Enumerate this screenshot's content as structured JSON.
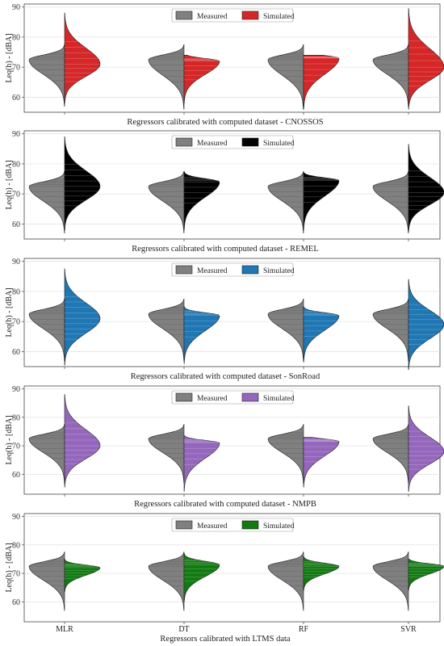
{
  "chart_data": [
    {
      "type": "violin",
      "title": "Regressors calibrated with computed dataset - CNOSSOS",
      "ylabel": "Leq(h) - [dBA]",
      "ylim": [
        55,
        91
      ],
      "yticks": [
        60,
        70,
        80,
        90
      ],
      "categories": [
        "MLR",
        "DT",
        "RF",
        "SVR"
      ],
      "legend": {
        "placement": "top-center",
        "entries": [
          "Measured",
          "Simulated"
        ]
      },
      "grid": true,
      "series": [
        {
          "name": "Measured",
          "color": "#808080",
          "side": "left",
          "min": [
            57,
            56,
            56,
            57
          ],
          "max": [
            77.5,
            77.5,
            77.5,
            77.5
          ],
          "peak": [
            72.5,
            72.5,
            72.5,
            72.5
          ]
        },
        {
          "name": "Simulated",
          "color": "#d62728",
          "side": "right",
          "min": [
            58,
            58,
            56,
            56
          ],
          "max": [
            88,
            74,
            74,
            89.5
          ],
          "peak": [
            71,
            72,
            73,
            70
          ]
        }
      ]
    },
    {
      "type": "violin",
      "title": "Regressors calibrated with computed dataset - REMEL",
      "ylabel": "Leq(h) - [dBA]",
      "ylim": [
        55,
        91
      ],
      "yticks": [
        60,
        70,
        80,
        90
      ],
      "categories": [
        "MLR",
        "DT",
        "RF",
        "SVR"
      ],
      "legend": {
        "placement": "top-center",
        "entries": [
          "Measured",
          "Simulated"
        ]
      },
      "grid": true,
      "series": [
        {
          "name": "Measured",
          "color": "#808080",
          "side": "left",
          "min": [
            57,
            57,
            57,
            57
          ],
          "max": [
            77.5,
            77.5,
            77.5,
            77.5
          ],
          "peak": [
            72.5,
            72.5,
            72.5,
            72.5
          ]
        },
        {
          "name": "Simulated",
          "color": "#000000",
          "side": "right",
          "min": [
            58,
            58,
            58,
            57.5
          ],
          "max": [
            89,
            77.5,
            77,
            86.5
          ],
          "peak": [
            72.5,
            74,
            74.5,
            70.5
          ]
        }
      ]
    },
    {
      "type": "violin",
      "title": "Regressors calibrated with computed dataset - SonRoad",
      "ylabel": "Leq(h) - [dBA]",
      "ylim": [
        55,
        91
      ],
      "yticks": [
        60,
        70,
        80,
        90
      ],
      "categories": [
        "MLR",
        "DT",
        "RF",
        "SVR"
      ],
      "legend": {
        "placement": "top-center",
        "entries": [
          "Measured",
          "Simulated"
        ]
      },
      "grid": true,
      "series": [
        {
          "name": "Measured",
          "color": "#808080",
          "side": "left",
          "min": [
            57,
            57,
            57,
            57
          ],
          "max": [
            77.5,
            77.5,
            77.5,
            77.5
          ],
          "peak": [
            72.5,
            72.5,
            72.5,
            72.5
          ]
        },
        {
          "name": "Simulated",
          "color": "#1f77b4",
          "side": "right",
          "min": [
            55.5,
            56,
            56.5,
            54
          ],
          "max": [
            87.5,
            75,
            75,
            84
          ],
          "peak": [
            71,
            72,
            72,
            69
          ]
        }
      ]
    },
    {
      "type": "violin",
      "title": "Regressors calibrated with computed dataset - NMPB",
      "ylabel": "Leq(h) - [dBA]",
      "ylim": [
        53,
        91
      ],
      "yticks": [
        60,
        70,
        80,
        90
      ],
      "categories": [
        "MLR",
        "DT",
        "RF",
        "SVR"
      ],
      "legend": {
        "placement": "top-center",
        "entries": [
          "Measured",
          "Simulated"
        ]
      },
      "grid": true,
      "series": [
        {
          "name": "Measured",
          "color": "#808080",
          "side": "left",
          "min": [
            57,
            57,
            57,
            57
          ],
          "max": [
            77.5,
            77.5,
            77.5,
            77.5
          ],
          "peak": [
            72.5,
            72.5,
            72.5,
            72.5
          ]
        },
        {
          "name": "Simulated",
          "color": "#9467bd",
          "side": "right",
          "min": [
            55.5,
            54,
            55.5,
            54
          ],
          "max": [
            88,
            73.5,
            73,
            84
          ],
          "peak": [
            70,
            71,
            71.5,
            68
          ]
        }
      ]
    },
    {
      "type": "violin",
      "title": "Regressors calibrated with LTMS data",
      "ylabel": "Leq(h) - [dBA]",
      "ylim": [
        53,
        91
      ],
      "yticks": [
        60,
        70,
        80,
        90
      ],
      "categories": [
        "MLR",
        "DT",
        "RF",
        "SVR"
      ],
      "legend": {
        "placement": "top-center",
        "entries": [
          "Measured",
          "Simulated"
        ]
      },
      "grid": true,
      "series": [
        {
          "name": "Measured",
          "color": "#808080",
          "side": "left",
          "min": [
            57,
            57,
            57,
            57
          ],
          "max": [
            77.5,
            77.5,
            77.5,
            77.5
          ],
          "peak": [
            72.5,
            72.5,
            72.5,
            72.5
          ]
        },
        {
          "name": "Simulated",
          "color": "#117a11",
          "side": "right",
          "min": [
            63.5,
            60,
            64,
            64
          ],
          "max": [
            75,
            77,
            76,
            75
          ],
          "peak": [
            72,
            73,
            72.5,
            72.5
          ]
        }
      ]
    }
  ]
}
